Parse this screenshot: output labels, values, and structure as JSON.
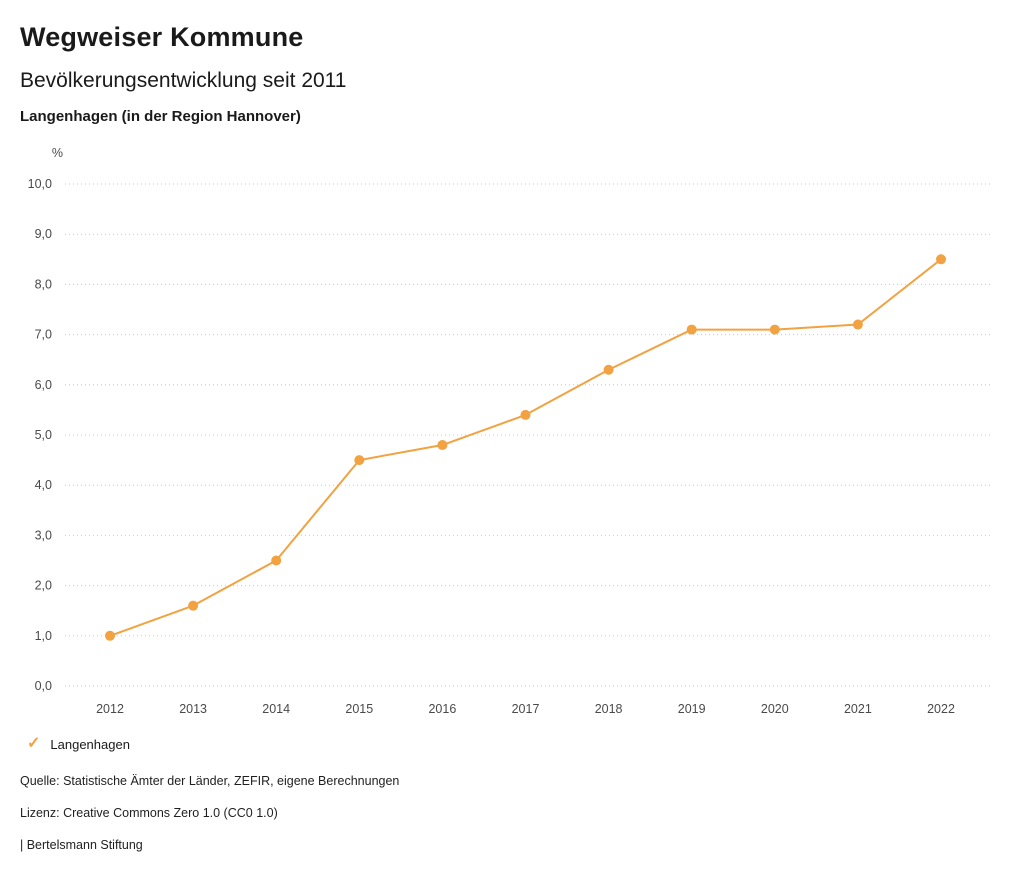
{
  "header": {
    "title": "Wegweiser Kommune",
    "subtitle": "Bevölkerungsentwicklung seit 2011",
    "region": "Langenhagen (in der Region Hannover)"
  },
  "chart_data": {
    "type": "line",
    "title": "Bevölkerungsentwicklung seit 2011",
    "subtitle": "Langenhagen (in der Region Hannover)",
    "xlabel": "",
    "ylabel": "%",
    "unit_label": "%",
    "categories": [
      "2012",
      "2013",
      "2014",
      "2015",
      "2016",
      "2017",
      "2018",
      "2019",
      "2020",
      "2021",
      "2022"
    ],
    "series": [
      {
        "name": "Langenhagen",
        "values": [
          1.0,
          1.6,
          2.5,
          4.5,
          4.8,
          5.4,
          6.3,
          7.1,
          7.1,
          7.2,
          8.5
        ],
        "color": "#f2a241"
      }
    ],
    "ylim": [
      0,
      10
    ],
    "y_tick_step": 1,
    "y_ticks": [
      "0,0",
      "1,0",
      "2,0",
      "3,0",
      "4,0",
      "5,0",
      "6,0",
      "7,0",
      "8,0",
      "9,0",
      "10,0"
    ],
    "grid": "horizontal-dotted",
    "legend_position": "bottom-left"
  },
  "legend": {
    "items": [
      {
        "label": "Langenhagen",
        "color": "#f2a241",
        "check_glyph": "✓"
      }
    ]
  },
  "footer": {
    "source": "Quelle: Statistische Ämter der Länder, ZEFIR, eigene Berechnungen",
    "license": "Lizenz: Creative Commons Zero 1.0 (CC0 1.0)",
    "attribution": "| Bertelsmann Stiftung"
  }
}
